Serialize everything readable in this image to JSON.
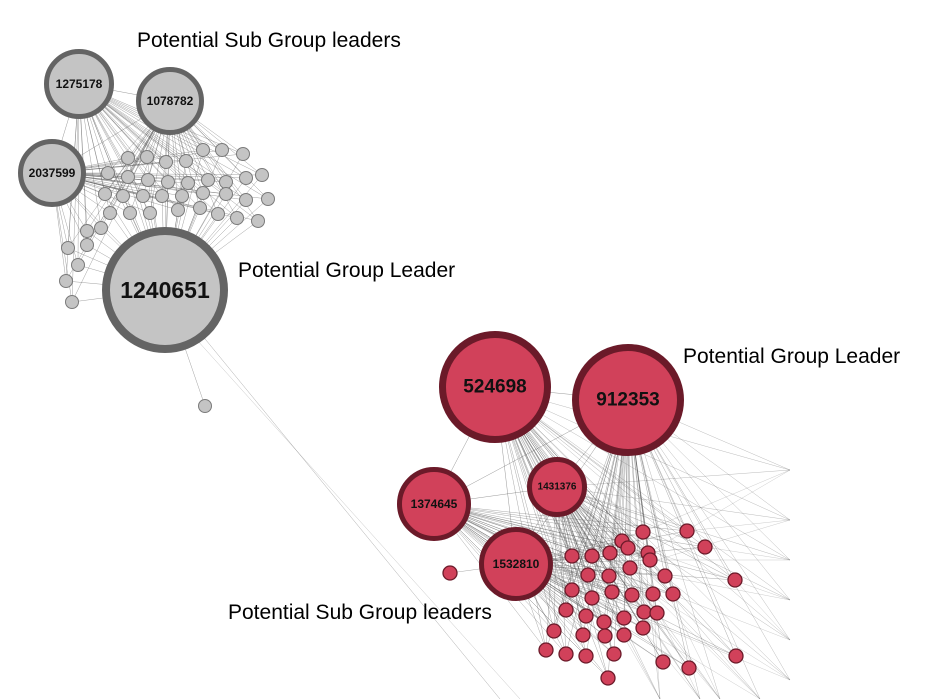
{
  "annotations": {
    "gray_sub_leaders": "Potential Sub Group leaders",
    "gray_group_leader": "Potential Group Leader",
    "red_group_leader": "Potential Group Leader",
    "red_sub_leaders": "Potential Sub Group leaders"
  },
  "colors": {
    "gray_fill": "#c4c4c4",
    "gray_ring": "#646464",
    "red_fill": "#d1415a",
    "red_ring": "#6b1a29",
    "edge": "#555555"
  },
  "gray_cluster": {
    "leaders": [
      {
        "id": "1275178",
        "role": "sub-group-leader"
      },
      {
        "id": "1078782",
        "role": "sub-group-leader"
      },
      {
        "id": "2037599",
        "role": "sub-group-leader"
      },
      {
        "id": "1240651",
        "role": "group-leader"
      }
    ]
  },
  "red_cluster": {
    "leaders": [
      {
        "id": "524698",
        "role": "group-leader"
      },
      {
        "id": "912353",
        "role": "group-leader"
      },
      {
        "id": "1374645",
        "role": "sub-group-leader"
      },
      {
        "id": "1431376",
        "role": "sub-group-leader"
      },
      {
        "id": "1532810",
        "role": "sub-group-leader"
      }
    ]
  }
}
